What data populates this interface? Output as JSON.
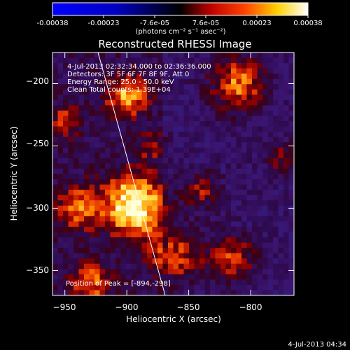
{
  "colorbar": {
    "tick_labels": [
      "-0.00038",
      "-0.00023",
      "-7.6e-05",
      "7.6e-05",
      "0.00023",
      "0.00038"
    ],
    "unit_label": "(photons cm⁻² s⁻¹ asec⁻²)",
    "range": [
      -0.00038,
      0.00038
    ],
    "colors": [
      "#0000ff",
      "#000000",
      "#ff0000",
      "#ffff00",
      "#ffffff"
    ]
  },
  "plot": {
    "title": "Reconstructed RHESSI Image",
    "xlabel": "Heliocentric X (arcsec)",
    "ylabel": "Heliocentric Y (arcsec)",
    "x_range": [
      -960,
      -765
    ],
    "y_range": [
      -370,
      -175
    ],
    "x_ticks": [
      -950,
      -900,
      -850,
      -800
    ],
    "y_ticks": [
      -200,
      -250,
      -300,
      -350
    ],
    "x_tick_labels": [
      "−950",
      "−900",
      "−850",
      "−800"
    ],
    "y_tick_labels": [
      "−200",
      "−250",
      "−300",
      "−350"
    ],
    "peak": [
      -894,
      -298
    ]
  },
  "annotations": {
    "time_range": "4-Jul-2013 02:32:34.000 to 02:36:36.000",
    "detectors": "Detectors: 3F 5F 6F 7F 8F 9F, Att 0",
    "energy": "Energy Range: 25.0 - 50.0 keV",
    "clean": "Clean    Total counts: 1.39E+04",
    "peak_position": "Position of Peak = [-894,-298]"
  },
  "footer": {
    "timestamp": "4-Jul-2013 04:34"
  }
}
